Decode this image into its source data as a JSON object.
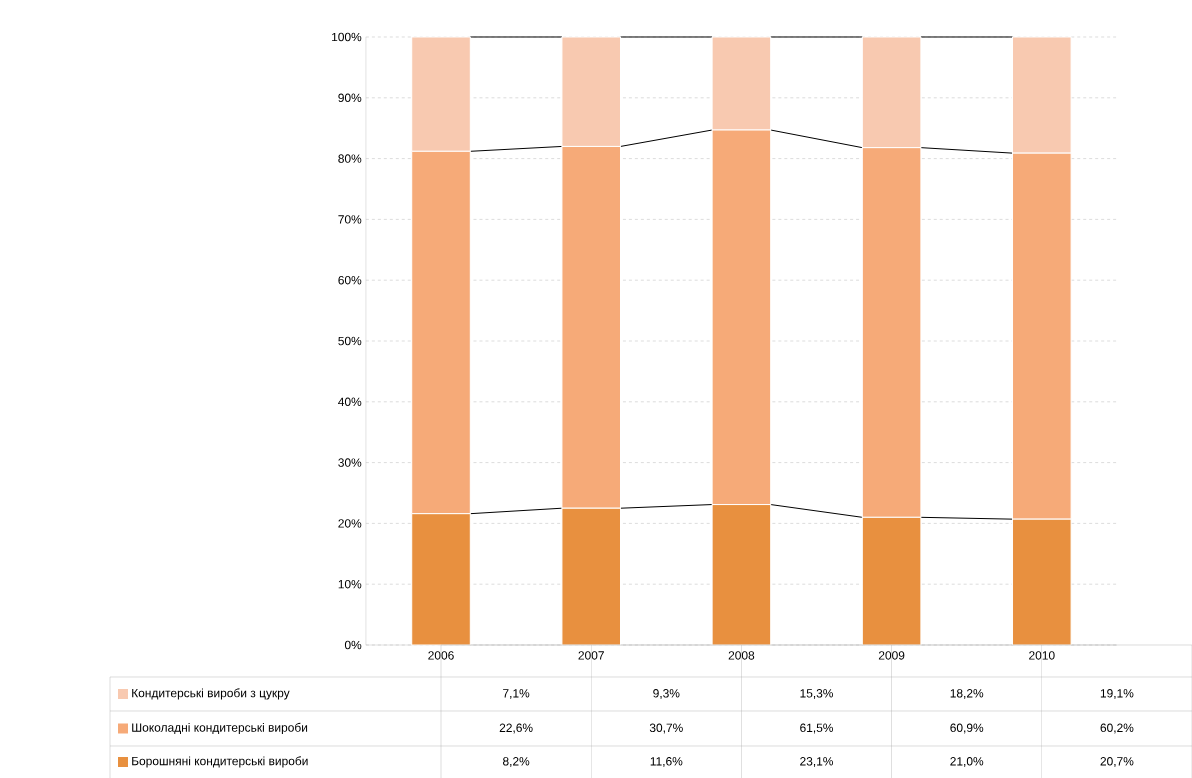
{
  "chart_data": [
    {
      "type": "bar",
      "stacked": true,
      "categories": [
        "2006",
        "2007",
        "2008",
        "2009",
        "2010"
      ],
      "series": [
        {
          "name": "Борошняні кондитерські вироби",
          "color": "#e8903f",
          "values": [
            21.6,
            22.5,
            23.1,
            21.0,
            20.7
          ]
        },
        {
          "name": "Шоколадні кондитерські вироби",
          "color": "#f6aa78",
          "values": [
            59.6,
            59.5,
            61.6,
            60.8,
            60.2
          ]
        },
        {
          "name": "Кондитерські вироби з цукру",
          "color": "#f8c9b0",
          "values": [
            18.8,
            18.0,
            15.3,
            18.2,
            19.1
          ]
        }
      ],
      "ylim": [
        0,
        100
      ],
      "yticks": [
        {
          "value": 0,
          "label": "0%"
        },
        {
          "value": 10,
          "label": "10%"
        },
        {
          "value": 20,
          "label": "20%"
        },
        {
          "value": 30,
          "label": "30%"
        },
        {
          "value": 40,
          "label": "40%"
        },
        {
          "value": 50,
          "label": "50%"
        },
        {
          "value": 60,
          "label": "60%"
        },
        {
          "value": 70,
          "label": "70%"
        },
        {
          "value": 80,
          "label": "80%"
        },
        {
          "value": 90,
          "label": "90%"
        },
        {
          "value": 100,
          "label": "100%"
        }
      ],
      "grid": "y",
      "legend": "bottom"
    },
    {
      "type": "other",
      "annotations": [
        "7,1%",
        "9,3%",
        "15,3%",
        "18,2%",
        "19,1%",
        "22,6%",
        "30,7%",
        "61,5%",
        "60,9%",
        "60,2%",
        "8,2%",
        "11,6%",
        "23,1%",
        "21,0%",
        "20,7%"
      ]
    }
  ]
}
